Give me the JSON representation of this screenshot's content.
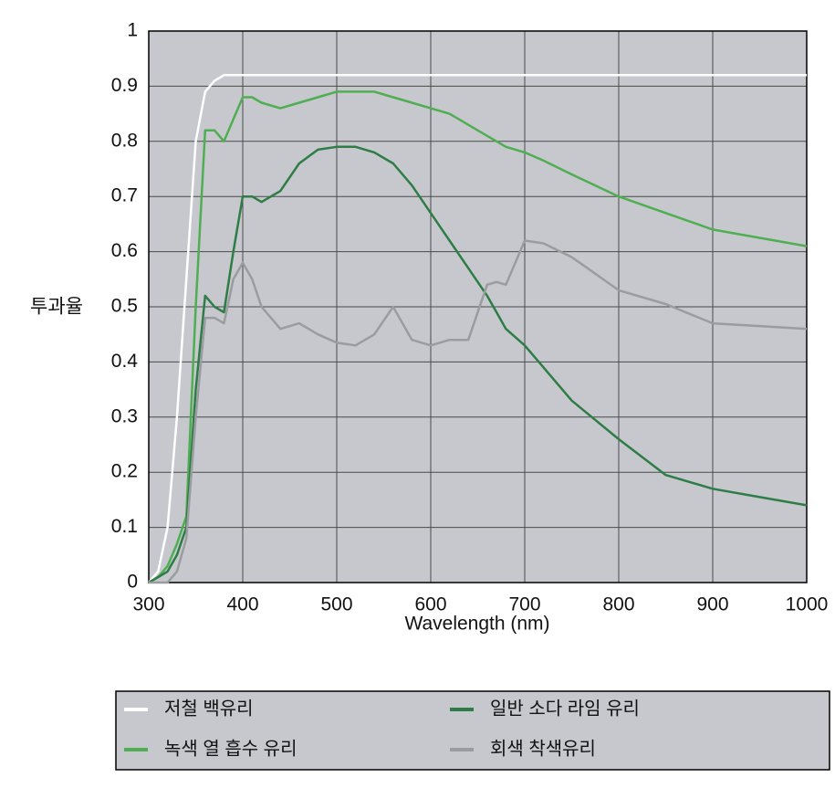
{
  "chart_data": {
    "type": "line",
    "y_label": "투과율",
    "x_label": "Wavelength (nm)",
    "xlim": [
      300,
      1000
    ],
    "ylim": [
      0,
      1
    ],
    "xticks": [
      300,
      400,
      500,
      600,
      700,
      800,
      900,
      1000
    ],
    "yticks": [
      0,
      0.1,
      0.2,
      0.3,
      0.4,
      0.5,
      0.6,
      0.7,
      0.8,
      0.9,
      1
    ],
    "grid": true,
    "x": [
      300,
      310,
      320,
      330,
      340,
      350,
      360,
      370,
      380,
      390,
      400,
      410,
      420,
      440,
      460,
      480,
      500,
      520,
      540,
      560,
      580,
      600,
      620,
      640,
      660,
      670,
      680,
      700,
      720,
      750,
      800,
      850,
      900,
      950,
      1000
    ],
    "series": [
      {
        "name": "저철 백유리",
        "color": "#ffffff",
        "values": [
          0,
          0.02,
          0.1,
          0.3,
          0.55,
          0.8,
          0.89,
          0.91,
          0.92,
          0.92,
          0.92,
          0.92,
          0.92,
          0.92,
          0.92,
          0.92,
          0.92,
          0.92,
          0.92,
          0.92,
          0.92,
          0.92,
          0.92,
          0.92,
          0.92,
          0.92,
          0.92,
          0.92,
          0.92,
          0.92,
          0.92,
          0.92,
          0.92,
          0.92,
          0.92
        ]
      },
      {
        "name": "녹색 열 흡수 유리",
        "color": "#4fae52",
        "values": [
          0,
          0.01,
          0.03,
          0.07,
          0.12,
          0.5,
          0.82,
          0.82,
          0.8,
          0.84,
          0.88,
          0.88,
          0.87,
          0.86,
          0.87,
          0.88,
          0.89,
          0.89,
          0.89,
          0.88,
          0.87,
          0.86,
          0.85,
          0.83,
          0.81,
          0.8,
          0.79,
          0.78,
          0.765,
          0.74,
          0.7,
          0.67,
          0.64,
          0.625,
          0.61
        ]
      },
      {
        "name": "일반 소다 라임 유리",
        "color": "#2e7d46",
        "values": [
          0,
          0.01,
          0.02,
          0.05,
          0.1,
          0.35,
          0.52,
          0.5,
          0.49,
          0.6,
          0.7,
          0.7,
          0.69,
          0.71,
          0.76,
          0.785,
          0.79,
          0.79,
          0.78,
          0.76,
          0.72,
          0.67,
          0.62,
          0.57,
          0.52,
          0.49,
          0.46,
          0.43,
          0.39,
          0.33,
          0.26,
          0.195,
          0.17,
          0.155,
          0.14
        ]
      },
      {
        "name": "회색 착색유리",
        "color": "#9a9ca0",
        "values": [
          0,
          0,
          0,
          0.02,
          0.08,
          0.3,
          0.48,
          0.48,
          0.47,
          0.55,
          0.58,
          0.55,
          0.5,
          0.46,
          0.47,
          0.45,
          0.435,
          0.43,
          0.45,
          0.5,
          0.44,
          0.43,
          0.44,
          0.44,
          0.54,
          0.545,
          0.54,
          0.62,
          0.615,
          0.59,
          0.53,
          0.505,
          0.47,
          0.465,
          0.46
        ]
      }
    ]
  }
}
